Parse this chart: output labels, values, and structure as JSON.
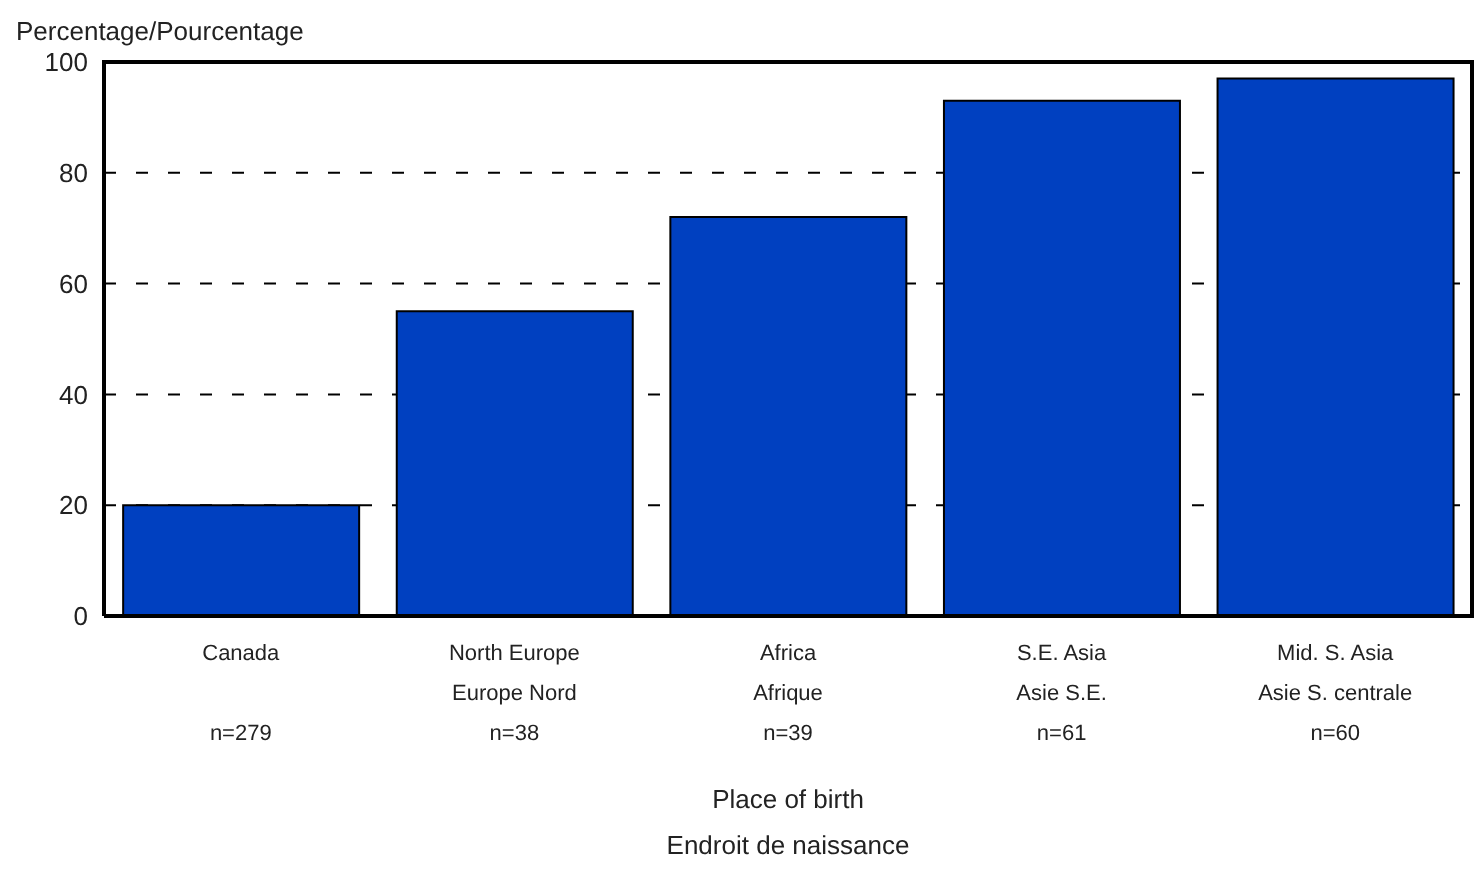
{
  "chart_data": {
    "type": "bar",
    "ylabel": "Percentage/Pourcentage",
    "xlabel": "Place of birth\nEndroit de naissance",
    "categories": [
      "Canada\n\nn=279",
      "North Europe\nEurope Nord\nn=38",
      "Africa\nAfrique\nn=39",
      "S.E. Asia\nAsie S.E.\nn=61",
      "Mid. S. Asia\nAsie S. centrale\nn=60"
    ],
    "values": [
      20,
      55,
      72,
      93,
      97
    ],
    "color": "#0040c0",
    "ylim": [
      0,
      100
    ],
    "yticks": [
      0,
      20,
      40,
      60,
      80,
      100
    ],
    "grid": "y"
  }
}
